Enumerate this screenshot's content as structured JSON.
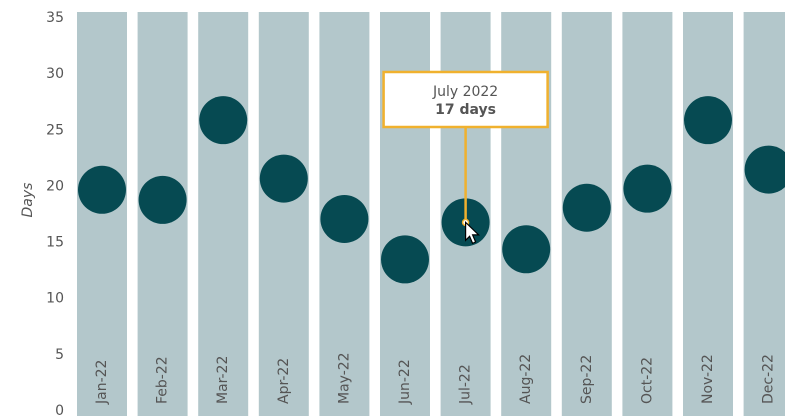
{
  "chart_data": {
    "type": "dot",
    "y_label": "Days",
    "categories": [
      "Jan-22",
      "Feb-22",
      "Mar-22",
      "Apr-22",
      "May-22",
      "Jun-22",
      "Jul-22",
      "Aug-22",
      "Sep-22",
      "Oct-22",
      "Nov-22",
      "Dec-22"
    ],
    "values": [
      19.7,
      18.8,
      25.9,
      20.7,
      17.1,
      13.5,
      16.8,
      14.4,
      18.1,
      19.8,
      25.9,
      21.5
    ],
    "color": "#064a52",
    "column_color": "#b3c7cb",
    "ylim": [
      0,
      35
    ],
    "yticks": [
      0,
      5,
      10,
      15,
      20,
      25,
      30,
      35
    ],
    "tooltip": {
      "index": 6,
      "title": "July 2022",
      "label": "17 days",
      "color": "#f0b12e"
    }
  }
}
